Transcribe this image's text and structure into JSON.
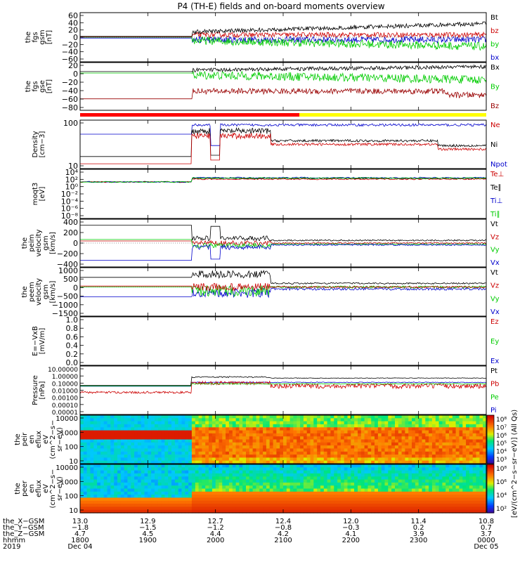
{
  "title": "P4 (TH-E) fields and on-board moments overview",
  "chart_data": {
    "type": "line",
    "panels": [
      {
        "name": "fgs-gsm",
        "ylabel": [
          "the",
          "fgs",
          "gsm",
          "[nT]"
        ],
        "ylim": [
          -60,
          60
        ],
        "yticks": [
          "60",
          "40",
          "20",
          "0",
          "−20",
          "−40",
          "−60"
        ],
        "legend": [
          {
            "label": "Bt",
            "color": "#000000"
          },
          {
            "label": "bz",
            "color": "#cc0000"
          },
          {
            "label": "by",
            "color": "#00cc00"
          },
          {
            "label": "bx",
            "color": "#0000cc"
          }
        ]
      },
      {
        "name": "fgs-gse",
        "ylabel": [
          "the",
          "fgs",
          "gse",
          "[nT]"
        ],
        "ylim": [
          -80,
          20
        ],
        "yticks": [
          "20",
          "0",
          "−20",
          "−40",
          "−60",
          "−80"
        ],
        "legend": [
          {
            "label": "Bx",
            "color": "#000000"
          },
          {
            "label": "By",
            "color": "#00cc00"
          },
          {
            "label": "Bz",
            "color": "#990000"
          }
        ]
      },
      {
        "name": "density",
        "ylabel": [
          "Density",
          "[cm−3]"
        ],
        "yticks": [
          "100",
          "10"
        ],
        "scale": "log",
        "legend": [
          {
            "label": "Ne",
            "color": "#cc0000"
          },
          {
            "label": "Ni",
            "color": "#000000"
          },
          {
            "label": "Npot",
            "color": "#0000cc"
          }
        ]
      },
      {
        "name": "temperature",
        "ylabel": [
          "moqt3",
          "[eV]"
        ],
        "yticks": [
          "10⁴",
          "10²",
          "10⁰",
          "10⁻²",
          "10⁻⁴",
          "10⁻⁶",
          "10⁻⁸"
        ],
        "scale": "log",
        "legend": [
          {
            "label": "Te⊥",
            "color": "#cc0000"
          },
          {
            "label": "Te∥",
            "color": "#000000"
          },
          {
            "label": "Ti⊥",
            "color": "#0000cc"
          },
          {
            "label": "Ti∥",
            "color": "#00cc00"
          }
        ]
      },
      {
        "name": "ion-velocity",
        "ylabel": [
          "the",
          "peim",
          "velocity",
          "gsm",
          "[km/s]"
        ],
        "ylim": [
          -400,
          400
        ],
        "yticks": [
          "400",
          "200",
          "0",
          "−200",
          "−400"
        ],
        "legend": [
          {
            "label": "Vt",
            "color": "#000000"
          },
          {
            "label": "Vz",
            "color": "#cc0000"
          },
          {
            "label": "Vy",
            "color": "#00cc00"
          },
          {
            "label": "Vx",
            "color": "#0000cc"
          }
        ]
      },
      {
        "name": "electron-velocity",
        "ylabel": [
          "the",
          "peem",
          "velocity",
          "gsm",
          "[km/s]"
        ],
        "ylim": [
          -1500,
          1000
        ],
        "yticks": [
          "1000",
          "500",
          "0",
          "−500",
          "−1000",
          "−1500"
        ],
        "legend": [
          {
            "label": "Vt",
            "color": "#000000"
          },
          {
            "label": "Vz",
            "color": "#cc0000"
          },
          {
            "label": "Vy",
            "color": "#00cc00"
          },
          {
            "label": "Vx",
            "color": "#0000cc"
          }
        ]
      },
      {
        "name": "e-field",
        "ylabel": [
          "E=−VxB",
          "[mV/m]"
        ],
        "ylim": [
          0,
          1
        ],
        "yticks": [
          "1.0",
          "0.8",
          "0.6",
          "0.4",
          "0.2",
          "0.0"
        ],
        "legend": [
          {
            "label": "Ez",
            "color": "#cc0000"
          },
          {
            "label": "Ey",
            "color": "#00cc00"
          },
          {
            "label": "Ex",
            "color": "#0000cc"
          }
        ]
      },
      {
        "name": "pressure",
        "ylabel": [
          "Pressure",
          "[nPa]"
        ],
        "yticks": [
          "10.00000",
          "1.00000",
          "0.10000",
          "0.01000",
          "0.00100",
          "0.00010",
          "0.00001"
        ],
        "scale": "log",
        "legend": [
          {
            "label": "Pt",
            "color": "#000000"
          },
          {
            "label": "Pb",
            "color": "#cc0000"
          },
          {
            "label": "Pe",
            "color": "#00cc00"
          },
          {
            "label": "Pi",
            "color": "#0000cc"
          }
        ]
      }
    ],
    "spectrograms": [
      {
        "name": "ion-eflux",
        "ylabel": [
          "the",
          "peir",
          "en",
          "eflux",
          "eV",
          "(cm^2−s−",
          "sr−eV)"
        ],
        "yticks": [
          "10000",
          "1000",
          "100",
          "10"
        ],
        "colorbar_ticks": [
          "10⁸",
          "10⁷",
          "10⁶",
          "10⁵",
          "10⁴",
          "10³"
        ],
        "colorbar_label": "[eV/(cm^2−s−sr−eV)] (All Qs)"
      },
      {
        "name": "electron-eflux",
        "ylabel": [
          "the",
          "peer",
          "en",
          "eflux",
          "eV",
          "(cm^2−s−",
          "sr−eV)"
        ],
        "yticks": [
          "10000",
          "1000",
          "100",
          "10"
        ],
        "colorbar_ticks": [
          "10⁸",
          "10⁶",
          "10⁴",
          "10²"
        ],
        "colorbar_label": "[eV/(cm^2−s−sr−eV)] (All Qs)"
      }
    ],
    "xaxis": {
      "row_labels": [
        "the_X−GSM",
        "the_Y−GSM",
        "the_Z−GSM",
        "hhmm",
        "2019"
      ],
      "columns": [
        {
          "x": "13.0",
          "y": "−1.8",
          "z": "4.7",
          "hhmm": "1800",
          "date": "Dec 04"
        },
        {
          "x": "12.9",
          "y": "−1.5",
          "z": "4.5",
          "hhmm": "1900",
          "date": ""
        },
        {
          "x": "12.7",
          "y": "−1.2",
          "z": "4.4",
          "hhmm": "2000",
          "date": ""
        },
        {
          "x": "12.4",
          "y": "−0.8",
          "z": "4.2",
          "hhmm": "2100",
          "date": ""
        },
        {
          "x": "12.0",
          "y": "−0.3",
          "z": "4.1",
          "hhmm": "2200",
          "date": ""
        },
        {
          "x": "11.4",
          "y": "0.2",
          "z": "3.9",
          "hhmm": "2300",
          "date": ""
        },
        {
          "x": "10.8",
          "y": "0.7",
          "z": "3.7",
          "hhmm": "0000",
          "date": "Dec 05"
        }
      ]
    }
  }
}
